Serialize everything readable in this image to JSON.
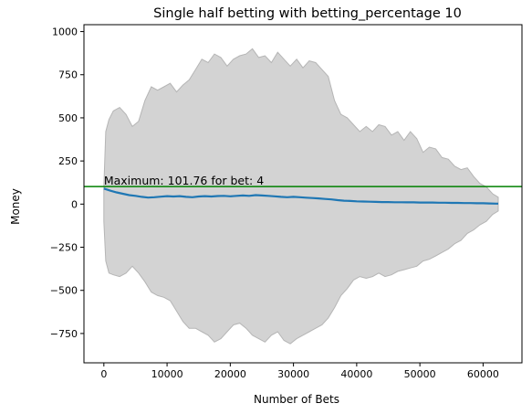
{
  "chart_data": {
    "type": "area",
    "title": "Single half betting with betting_percentage 10",
    "xlabel": "Number of Bets",
    "ylabel": "Money",
    "xlim": [
      -3150,
      66150
    ],
    "ylim": [
      -920,
      1040
    ],
    "x_ticks": [
      0,
      10000,
      20000,
      30000,
      40000,
      50000,
      60000
    ],
    "y_ticks": [
      -750,
      -500,
      -250,
      0,
      250,
      500,
      750,
      1000
    ],
    "grid": false,
    "band": {
      "name": "spread",
      "color": "#d3d3d3",
      "edge_color": "#b5b5b5",
      "x": [
        0,
        300,
        800,
        1500,
        2500,
        3500,
        4500,
        5500,
        6500,
        7500,
        8500,
        9500,
        10500,
        11500,
        12500,
        13500,
        14500,
        15500,
        16500,
        17500,
        18500,
        19500,
        20500,
        21500,
        22500,
        23500,
        24500,
        25500,
        26500,
        27500,
        28500,
        29500,
        30500,
        31500,
        32500,
        33500,
        34500,
        35500,
        36500,
        37500,
        38500,
        39500,
        40500,
        41500,
        42500,
        43500,
        44500,
        45500,
        46500,
        47500,
        48500,
        49500,
        50500,
        51500,
        52500,
        53500,
        54500,
        55500,
        56500,
        57500,
        58500,
        59500,
        60500,
        61500,
        62400
      ],
      "upper": [
        100,
        420,
        490,
        540,
        560,
        520,
        450,
        480,
        600,
        680,
        660,
        680,
        700,
        650,
        690,
        720,
        780,
        840,
        820,
        870,
        850,
        800,
        840,
        860,
        870,
        900,
        850,
        860,
        820,
        880,
        840,
        800,
        840,
        790,
        830,
        820,
        780,
        740,
        600,
        520,
        500,
        460,
        420,
        450,
        420,
        460,
        450,
        400,
        420,
        370,
        420,
        380,
        300,
        330,
        320,
        270,
        260,
        220,
        200,
        210,
        160,
        120,
        100,
        60,
        40
      ],
      "lower": [
        -100,
        -330,
        -400,
        -410,
        -420,
        -400,
        -360,
        -400,
        -450,
        -510,
        -530,
        -540,
        -560,
        -620,
        -680,
        -720,
        -720,
        -740,
        -760,
        -800,
        -780,
        -740,
        -700,
        -690,
        -720,
        -760,
        -780,
        -800,
        -760,
        -740,
        -790,
        -810,
        -780,
        -760,
        -740,
        -720,
        -700,
        -660,
        -600,
        -530,
        -490,
        -440,
        -420,
        -430,
        -420,
        -400,
        -420,
        -410,
        -390,
        -380,
        -370,
        -360,
        -330,
        -320,
        -300,
        -280,
        -260,
        -230,
        -210,
        -170,
        -150,
        -120,
        -100,
        -60,
        -40
      ]
    },
    "series": [
      {
        "color": "#1f77b4",
        "x": [
          0,
          1000,
          2000,
          3000,
          4000,
          5000,
          6000,
          7000,
          8000,
          9000,
          10000,
          11000,
          12000,
          13000,
          14000,
          15000,
          16000,
          17000,
          18000,
          19000,
          20000,
          21000,
          22000,
          23000,
          24000,
          25000,
          26000,
          27000,
          28000,
          29000,
          30000,
          31000,
          32000,
          33000,
          34000,
          35000,
          36000,
          37000,
          38000,
          39000,
          40000,
          41000,
          42000,
          43000,
          44000,
          45000,
          46000,
          47000,
          48000,
          49000,
          50000,
          51000,
          52000,
          53000,
          54000,
          55000,
          56000,
          57000,
          58000,
          59000,
          60000,
          61000,
          62000,
          62400
        ],
        "values": [
          90,
          78,
          68,
          60,
          52,
          48,
          42,
          38,
          40,
          43,
          46,
          44,
          46,
          42,
          40,
          44,
          46,
          44,
          47,
          48,
          45,
          48,
          50,
          48,
          52,
          50,
          48,
          45,
          42,
          40,
          42,
          40,
          37,
          35,
          33,
          30,
          27,
          23,
          20,
          18,
          16,
          15,
          14,
          13,
          12,
          12,
          11,
          11,
          10,
          10,
          9,
          9,
          9,
          8,
          8,
          7,
          7,
          6,
          6,
          5,
          5,
          4,
          3,
          3
        ]
      }
    ],
    "hline": {
      "y": 101.76,
      "color": "#008000"
    },
    "annotation": {
      "text": "Maximum: 101.76 for bet: 4",
      "x": 4,
      "y": 101.76
    }
  }
}
